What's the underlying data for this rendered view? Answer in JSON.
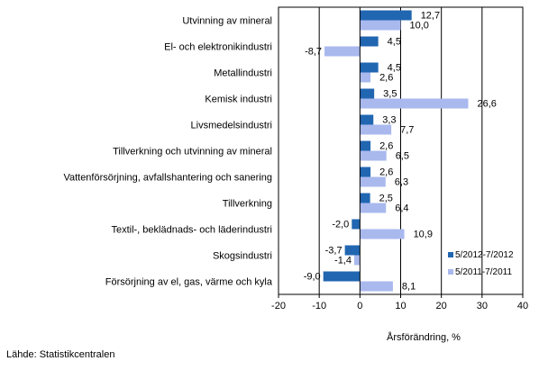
{
  "chart_data": {
    "type": "bar",
    "orientation": "horizontal",
    "categories": [
      "Utvinning av mineral",
      "El- och elektronikindustri",
      "Metallindustri",
      "Kemisk industri",
      "Livsmedelsindustri",
      "Tillverkning och utvinning av mineral",
      "Vattenförsörjning, avfallshantering och sanering",
      "Tillverkning",
      "Textil-, beklädnads- och läderindustri",
      "Skogsindustri",
      "Försörjning av el, gas, värme och kyla"
    ],
    "series": [
      {
        "name": "5/2012-7/2012",
        "color": "#2166b1",
        "values": [
          12.7,
          4.5,
          4.5,
          3.5,
          3.3,
          2.6,
          2.6,
          2.5,
          -2.0,
          -3.7,
          -9.0
        ],
        "labels": [
          "12,7",
          "4,5",
          "4,5",
          "3,5",
          "3,3",
          "2,6",
          "2,6",
          "2,5",
          "-2,0",
          "-3,7",
          "-9,0"
        ]
      },
      {
        "name": "5/2011-7/2011",
        "color": "#a9b9ee",
        "values": [
          10.0,
          -8.7,
          2.6,
          26.6,
          7.7,
          6.5,
          6.3,
          6.4,
          10.9,
          -1.4,
          8.1
        ],
        "labels": [
          "10,0",
          "-8,7",
          "2,6",
          "26,6",
          "7,7",
          "6,5",
          "6,3",
          "6,4",
          "10,9",
          "-1,4",
          "8,1"
        ]
      }
    ],
    "xlim": [
      -20,
      40
    ],
    "xticks": [
      -20,
      -10,
      0,
      10,
      20,
      30,
      40
    ],
    "xtick_labels": [
      "-20",
      "-10",
      "0",
      "10",
      "20",
      "30",
      "40"
    ],
    "xlabel": "Årsförändring, %",
    "grid": "vertical",
    "legend_position": "lower-right"
  },
  "source": "Lähde: Statistikcentralen"
}
